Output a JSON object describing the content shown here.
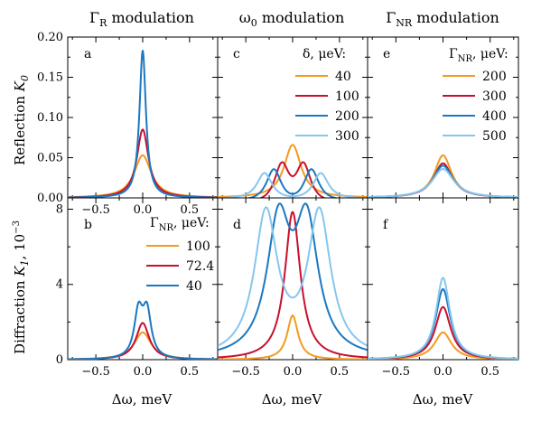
{
  "colors": {
    "orange": "#f39a1f",
    "red": "#c8102e",
    "blue": "#1a78c2",
    "lightblue": "#86c6ee"
  },
  "columns": [
    {
      "title_main": "Γ",
      "title_sub": "R",
      "title_rest": " modulation"
    },
    {
      "title_main": "ω",
      "title_sub": "0",
      "title_rest": " modulation"
    },
    {
      "title_main": "Γ",
      "title_sub": "NR",
      "title_rest": " modulation"
    }
  ],
  "row_labels": [
    {
      "main": "Reflection ",
      "ital": "K",
      "sub": "0",
      "sup": ""
    },
    {
      "main": "Diffraction ",
      "ital": "K",
      "sub": "1",
      "sup": ", 10",
      "exp": "−3"
    }
  ],
  "xlabel": "Δω, meV",
  "legends": {
    "b": {
      "title_main": "Γ",
      "title_sub": "NR",
      "title_rest": ", μeV:",
      "items": [
        "100",
        "72.4",
        "40"
      ]
    },
    "c": {
      "title": "δ, μeV:",
      "items": [
        "40",
        "100",
        "200",
        "300"
      ]
    },
    "e": {
      "title_main": "Γ",
      "title_sub": "NR",
      "title_rest": ", μeV:",
      "items": [
        "200",
        "300",
        "400",
        "500"
      ]
    }
  },
  "chart_data": [
    {
      "panel": "a",
      "type": "line",
      "xlim": [
        -0.8,
        0.8
      ],
      "ylim": [
        0,
        0.2
      ],
      "xticks": [
        -0.5,
        0.0,
        0.5
      ],
      "xtick_labels": [
        "−0.5",
        "0.0",
        "0.5"
      ],
      "yticks": [
        0,
        0.05,
        0.1,
        0.15,
        0.2
      ],
      "ytick_labels": [
        "0.00",
        "0.05",
        "0.10",
        "0.15",
        "0.20"
      ],
      "series": [
        {
          "color": "orange",
          "shape": "lorentz",
          "amp": 0.053,
          "center": 0,
          "width": 0.11
        },
        {
          "color": "red",
          "shape": "lorentz",
          "amp": 0.085,
          "center": 0,
          "width": 0.075
        },
        {
          "color": "blue",
          "shape": "lorentz",
          "amp": 0.183,
          "center": 0,
          "width": 0.042
        }
      ]
    },
    {
      "panel": "b",
      "type": "line",
      "xlim": [
        -0.8,
        0.8
      ],
      "ylim": [
        0,
        8.6
      ],
      "xticks": [
        -0.5,
        0.0,
        0.5
      ],
      "xtick_labels": [
        "−0.5",
        "0.0",
        "0.5"
      ],
      "yticks": [
        0,
        4,
        8
      ],
      "ytick_labels": [
        "0",
        "4",
        "8"
      ],
      "series": [
        {
          "name": "100",
          "color": "orange",
          "shape": "lorentz",
          "amp": 1.45,
          "center": 0,
          "width": 0.11
        },
        {
          "name": "72.4",
          "color": "red",
          "shape": "lorentz",
          "amp": 1.95,
          "center": 0,
          "width": 0.085
        },
        {
          "name": "40",
          "color": "blue",
          "shape": "doublepeak",
          "amp": 3.05,
          "split": 0.045,
          "width": 0.055
        }
      ]
    },
    {
      "panel": "c",
      "type": "line",
      "xlim": [
        -0.8,
        0.8
      ],
      "ylim": [
        0,
        0.2
      ],
      "series": [
        {
          "name": "40",
          "color": "orange",
          "shape": "lorentz",
          "amp": 0.066,
          "center": 0,
          "width": 0.11
        },
        {
          "name": "100",
          "color": "red",
          "shape": "split",
          "peak": 0.043,
          "dip": 0.027,
          "split": 0.115,
          "width": 0.1
        },
        {
          "name": "200",
          "color": "blue",
          "shape": "split",
          "peak": 0.034,
          "dip": 0.005,
          "split": 0.2,
          "width": 0.1
        },
        {
          "name": "300",
          "color": "lightblue",
          "shape": "split",
          "peak": 0.03,
          "dip": 0.002,
          "split": 0.3,
          "width": 0.1
        }
      ]
    },
    {
      "panel": "d",
      "type": "line",
      "xlim": [
        -0.8,
        0.8
      ],
      "ylim": [
        0,
        8.6
      ],
      "xticks": [
        -0.5,
        0.0,
        0.5
      ],
      "xtick_labels": [
        "−0.5",
        "0.0",
        "0.5"
      ],
      "series": [
        {
          "color": "orange",
          "shape": "lorentz",
          "amp": 2.35,
          "center": 0,
          "width": 0.07
        },
        {
          "color": "red",
          "shape": "lorentz",
          "amp": 7.85,
          "center": 0,
          "width": 0.1
        },
        {
          "color": "blue",
          "shape": "doublepeak",
          "amp": 8.25,
          "split": 0.15,
          "width": 0.15
        },
        {
          "color": "lightblue",
          "shape": "doublepeak",
          "amp": 8.1,
          "split": 0.285,
          "width": 0.15
        }
      ]
    },
    {
      "panel": "e",
      "type": "line",
      "xlim": [
        -0.8,
        0.8
      ],
      "ylim": [
        0,
        0.2
      ],
      "series": [
        {
          "name": "200",
          "color": "orange",
          "shape": "lorentz",
          "amp": 0.053,
          "center": 0,
          "width": 0.11
        },
        {
          "name": "300",
          "color": "red",
          "shape": "lorentz",
          "amp": 0.043,
          "center": 0,
          "width": 0.12
        },
        {
          "name": "400",
          "color": "blue",
          "shape": "lorentz",
          "amp": 0.04,
          "center": 0,
          "width": 0.13
        },
        {
          "name": "500",
          "color": "lightblue",
          "shape": "lorentz",
          "amp": 0.036,
          "center": 0,
          "width": 0.14
        }
      ]
    },
    {
      "panel": "f",
      "type": "line",
      "xlim": [
        -0.8,
        0.8
      ],
      "ylim": [
        0,
        8.6
      ],
      "xticks": [
        -0.5,
        0.0,
        0.5
      ],
      "xtick_labels": [
        "−0.5",
        "0.0",
        "0.5"
      ],
      "series": [
        {
          "color": "orange",
          "shape": "lorentz",
          "amp": 1.45,
          "center": 0,
          "width": 0.11
        },
        {
          "color": "red",
          "shape": "lorentz",
          "amp": 2.8,
          "center": 0,
          "width": 0.1
        },
        {
          "color": "blue",
          "shape": "lorentz",
          "amp": 3.75,
          "center": 0,
          "width": 0.095
        },
        {
          "color": "lightblue",
          "shape": "lorentz",
          "amp": 4.35,
          "center": 0,
          "width": 0.09
        }
      ]
    }
  ]
}
